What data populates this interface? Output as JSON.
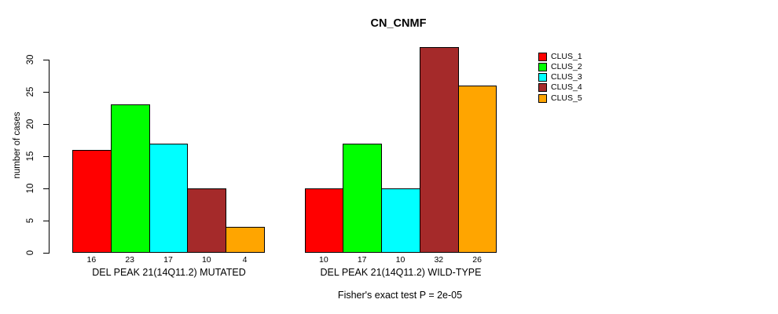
{
  "figure": {
    "background": "#ffffff",
    "text_color": "#000000",
    "axis_color": "#000000"
  },
  "chart_data": {
    "type": "bar",
    "title": "CN_CNMF",
    "xlabel": "",
    "ylabel": "number of cases",
    "ylim": [
      0,
      30
    ],
    "yticks": [
      "0",
      "5",
      "10",
      "15",
      "20",
      "25",
      "30"
    ],
    "grid": "off",
    "legend_position": "right",
    "categories": [
      "DEL PEAK 21(14Q11.2) MUTATED",
      "DEL PEAK 21(14Q11.2) WILD-TYPE"
    ],
    "series": [
      {
        "name": "CLUS_1",
        "color": "#FF0000",
        "values": [
          16,
          10
        ]
      },
      {
        "name": "CLUS_2",
        "color": "#00FF00",
        "values": [
          23,
          17
        ]
      },
      {
        "name": "CLUS_3",
        "color": "#00FFFF",
        "values": [
          17,
          10
        ]
      },
      {
        "name": "CLUS_4",
        "color": "#A52A2A",
        "values": [
          10,
          32
        ]
      },
      {
        "name": "CLUS_5",
        "color": "#FFA500",
        "values": [
          4,
          26
        ]
      }
    ],
    "bar_value_labels_shown": true,
    "annotation": "Fisher's exact test P = 2e-05"
  }
}
